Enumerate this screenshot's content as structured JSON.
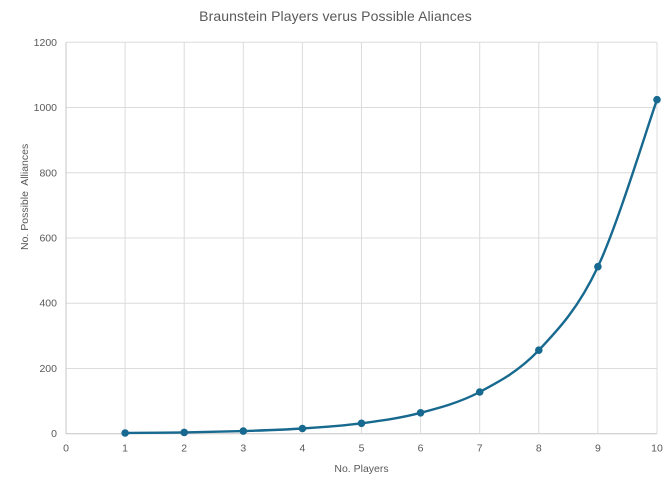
{
  "chart_data": {
    "type": "line",
    "title": "Braunstein Players verus Possible Aliances",
    "xlabel": "No. Players",
    "ylabel": "No. Possible  Alliances",
    "x": [
      1,
      2,
      3,
      4,
      5,
      6,
      7,
      8,
      9,
      10
    ],
    "values": [
      2,
      4,
      8,
      16,
      32,
      64,
      128,
      256,
      512,
      1024
    ],
    "x_ticks": [
      0,
      1,
      2,
      3,
      4,
      5,
      6,
      7,
      8,
      9,
      10
    ],
    "y_ticks": [
      0,
      200,
      400,
      600,
      800,
      1000,
      1200
    ],
    "xlim": [
      0,
      10
    ],
    "ylim": [
      0,
      1200
    ],
    "grid": true,
    "legend": "none",
    "smooth": true,
    "marker": "circle"
  },
  "colors": {
    "line": "#17698f",
    "marker": "#17698f",
    "title_text": "#595959",
    "axis_text": "#595959",
    "gridline": "#dcdcdc",
    "axis_line": "#c6c6c6",
    "background": "#ffffff"
  }
}
